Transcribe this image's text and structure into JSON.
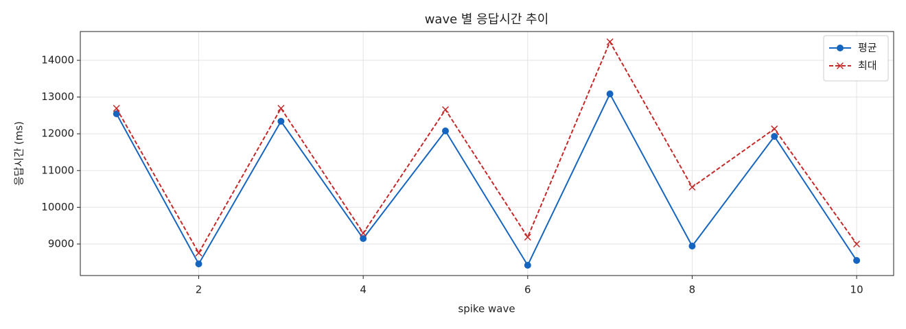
{
  "chart_data": {
    "type": "line",
    "title": "wave 별 응답시간 추이",
    "xlabel": "spike wave",
    "ylabel": "응답시간 (ms)",
    "x": [
      1,
      2,
      3,
      4,
      5,
      6,
      7,
      8,
      9,
      10
    ],
    "series": [
      {
        "name": "평균",
        "color": "#1565c0",
        "marker": "o",
        "linestyle": "solid",
        "values": [
          12545,
          8459,
          12340,
          9149,
          12078,
          8422,
          13086,
          8944,
          11929,
          8552
        ]
      },
      {
        "name": "최대",
        "color": "#c62828",
        "marker": "x",
        "linestyle": "dashed",
        "values": [
          12694,
          8757,
          12694,
          9298,
          12657,
          9187,
          14504,
          10549,
          12134,
          9000
        ]
      }
    ],
    "xlim": [
      0.56,
      10.45
    ],
    "ylim": [
      8142,
      14784
    ],
    "xticks": [
      2,
      4,
      6,
      8,
      10
    ],
    "yticks": [
      9000,
      10000,
      11000,
      12000,
      13000,
      14000
    ],
    "grid": true,
    "legend": "upper right"
  }
}
